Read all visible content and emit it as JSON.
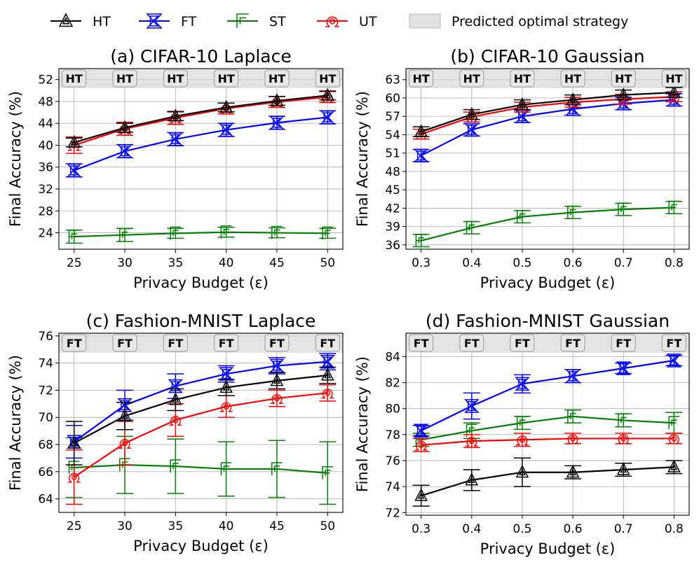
{
  "legend": {
    "items": [
      {
        "label": "HT",
        "color": "#000000",
        "marker": "triangle-up-icon"
      },
      {
        "label": "FT",
        "color": "#0000ff",
        "marker": "hourglass-icon"
      },
      {
        "label": "ST",
        "color": "#008000",
        "marker": "square-bracket-icon"
      },
      {
        "label": "UT",
        "color": "#ff0000",
        "marker": "omega-icon"
      }
    ],
    "shaded_label": "Predicted optimal strategy",
    "shaded_color": "#e0e0e0"
  },
  "chart_data": [
    {
      "type": "line",
      "title": "(a) CIFAR-10 Laplace",
      "xlabel": "Privacy Budget (ε)",
      "ylabel": "Final Accuracy (%)",
      "x": [
        25,
        30,
        35,
        40,
        45,
        50
      ],
      "xticks": [
        "25",
        "30",
        "35",
        "40",
        "45",
        "50"
      ],
      "xlim": [
        23.5,
        51.5
      ],
      "yticks": [
        24,
        28,
        32,
        36,
        40,
        44,
        48,
        52
      ],
      "ylim": [
        21.0,
        54.0
      ],
      "optimal": [
        "HT",
        "HT",
        "HT",
        "HT",
        "HT",
        "HT"
      ],
      "series": [
        {
          "name": "HT",
          "values": [
            40.5,
            43.2,
            45.3,
            46.9,
            48.1,
            49.1
          ],
          "err": [
            0.8,
            0.8,
            0.8,
            0.8,
            0.8,
            0.8
          ]
        },
        {
          "name": "FT",
          "values": [
            35.4,
            38.9,
            41.1,
            42.8,
            44.1,
            45.1
          ],
          "err": [
            1.2,
            1.2,
            1.2,
            1.2,
            1.2,
            1.2
          ]
        },
        {
          "name": "ST",
          "values": [
            23.3,
            23.6,
            23.9,
            24.1,
            24.0,
            23.9
          ],
          "err": [
            1.2,
            1.2,
            0.9,
            0.9,
            0.9,
            0.9
          ]
        },
        {
          "name": "UT",
          "values": [
            40.0,
            43.0,
            45.0,
            46.7,
            47.9,
            48.8
          ],
          "err": [
            1.5,
            1.2,
            1.2,
            1.0,
            1.0,
            1.0
          ]
        }
      ]
    },
    {
      "type": "line",
      "title": "(b) CIFAR-10 Gaussian",
      "xlabel": "Privacy Budget (ε)",
      "ylabel": "Final Accuracy (%)",
      "x": [
        0.3,
        0.4,
        0.5,
        0.6,
        0.7,
        0.8
      ],
      "xticks": [
        "0.3",
        "0.4",
        "0.5",
        "0.6",
        "0.7",
        "0.8"
      ],
      "xlim": [
        0.27,
        0.83
      ],
      "yticks": [
        36,
        39,
        42,
        45,
        48,
        51,
        54,
        57,
        60,
        63
      ],
      "ylim": [
        35.3,
        64.8
      ],
      "optimal": [
        "HT",
        "HT",
        "HT",
        "HT",
        "HT",
        "HT"
      ],
      "series": [
        {
          "name": "HT",
          "values": [
            54.5,
            57.3,
            58.9,
            59.7,
            60.5,
            60.9
          ],
          "err": [
            0.8,
            0.8,
            0.8,
            0.8,
            0.8,
            0.8
          ]
        },
        {
          "name": "FT",
          "values": [
            50.6,
            54.8,
            57.0,
            58.2,
            59.1,
            59.7
          ],
          "err": [
            1.0,
            1.0,
            1.0,
            1.0,
            1.0,
            1.0
          ]
        },
        {
          "name": "ST",
          "values": [
            36.7,
            38.8,
            40.6,
            41.3,
            41.8,
            42.1
          ],
          "err": [
            1.0,
            1.0,
            1.0,
            1.0,
            1.0,
            1.0
          ]
        },
        {
          "name": "UT",
          "values": [
            54.1,
            56.9,
            58.5,
            59.3,
            59.8,
            60.2
          ],
          "err": [
            0.8,
            0.8,
            0.8,
            0.8,
            0.8,
            0.8
          ]
        }
      ]
    },
    {
      "type": "line",
      "title": "(c) Fashion-MNIST Laplace",
      "xlabel": "Privacy Budget (ε)",
      "ylabel": "Final Accuracy (%)",
      "x": [
        25,
        30,
        35,
        40,
        45,
        50
      ],
      "xticks": [
        "25",
        "30",
        "35",
        "40",
        "45",
        "50"
      ],
      "xlim": [
        23.5,
        51.5
      ],
      "yticks": [
        64,
        66,
        68,
        70,
        72,
        74,
        76
      ],
      "ylim": [
        63.0,
        76.2
      ],
      "optimal": [
        "FT",
        "FT",
        "FT",
        "FT",
        "FT",
        "FT"
      ],
      "series": [
        {
          "name": "HT",
          "values": [
            68.1,
            70.1,
            71.3,
            72.2,
            72.7,
            73.1
          ],
          "err": [
            1.6,
            1.0,
            0.8,
            0.6,
            0.6,
            0.6
          ]
        },
        {
          "name": "FT",
          "values": [
            68.2,
            70.9,
            72.3,
            73.2,
            73.8,
            74.1
          ],
          "err": [
            1.2,
            1.1,
            0.9,
            0.6,
            0.6,
            0.6
          ]
        },
        {
          "name": "ST",
          "values": [
            66.3,
            66.5,
            66.4,
            66.2,
            66.2,
            65.9
          ],
          "err": [
            2.2,
            2.1,
            2.0,
            2.0,
            2.1,
            2.3
          ]
        },
        {
          "name": "UT",
          "values": [
            65.6,
            68.1,
            69.8,
            70.8,
            71.4,
            71.8
          ],
          "err": [
            2.0,
            1.6,
            1.2,
            0.8,
            0.6,
            0.6
          ]
        }
      ]
    },
    {
      "type": "line",
      "title": "(d) Fashion-MNIST Gaussian",
      "xlabel": "Privacy Budget (ε)",
      "ylabel": "Final Accuracy (%)",
      "x": [
        0.3,
        0.4,
        0.5,
        0.6,
        0.7,
        0.8
      ],
      "xticks": [
        "0.3",
        "0.4",
        "0.5",
        "0.6",
        "0.7",
        "0.8"
      ],
      "xlim": [
        0.27,
        0.83
      ],
      "yticks": [
        72,
        74,
        76,
        78,
        80,
        82,
        84
      ],
      "ylim": [
        71.8,
        85.8
      ],
      "optimal": [
        "FT",
        "FT",
        "FT",
        "FT",
        "FT",
        "FT"
      ],
      "series": [
        {
          "name": "HT",
          "values": [
            73.3,
            74.5,
            75.1,
            75.1,
            75.3,
            75.5
          ],
          "err": [
            0.8,
            0.8,
            1.1,
            0.5,
            0.5,
            0.5
          ]
        },
        {
          "name": "FT",
          "values": [
            78.3,
            80.2,
            81.9,
            82.5,
            83.1,
            83.7
          ],
          "err": [
            0.4,
            1.0,
            0.7,
            0.5,
            0.4,
            0.4
          ]
        },
        {
          "name": "ST",
          "values": [
            77.6,
            78.3,
            78.9,
            79.4,
            79.1,
            78.9
          ],
          "err": [
            0.5,
            0.6,
            0.5,
            0.5,
            0.5,
            0.8
          ]
        },
        {
          "name": "UT",
          "values": [
            77.2,
            77.5,
            77.6,
            77.7,
            77.7,
            77.7
          ],
          "err": [
            0.5,
            0.5,
            0.5,
            0.4,
            0.4,
            0.4
          ]
        }
      ]
    }
  ]
}
